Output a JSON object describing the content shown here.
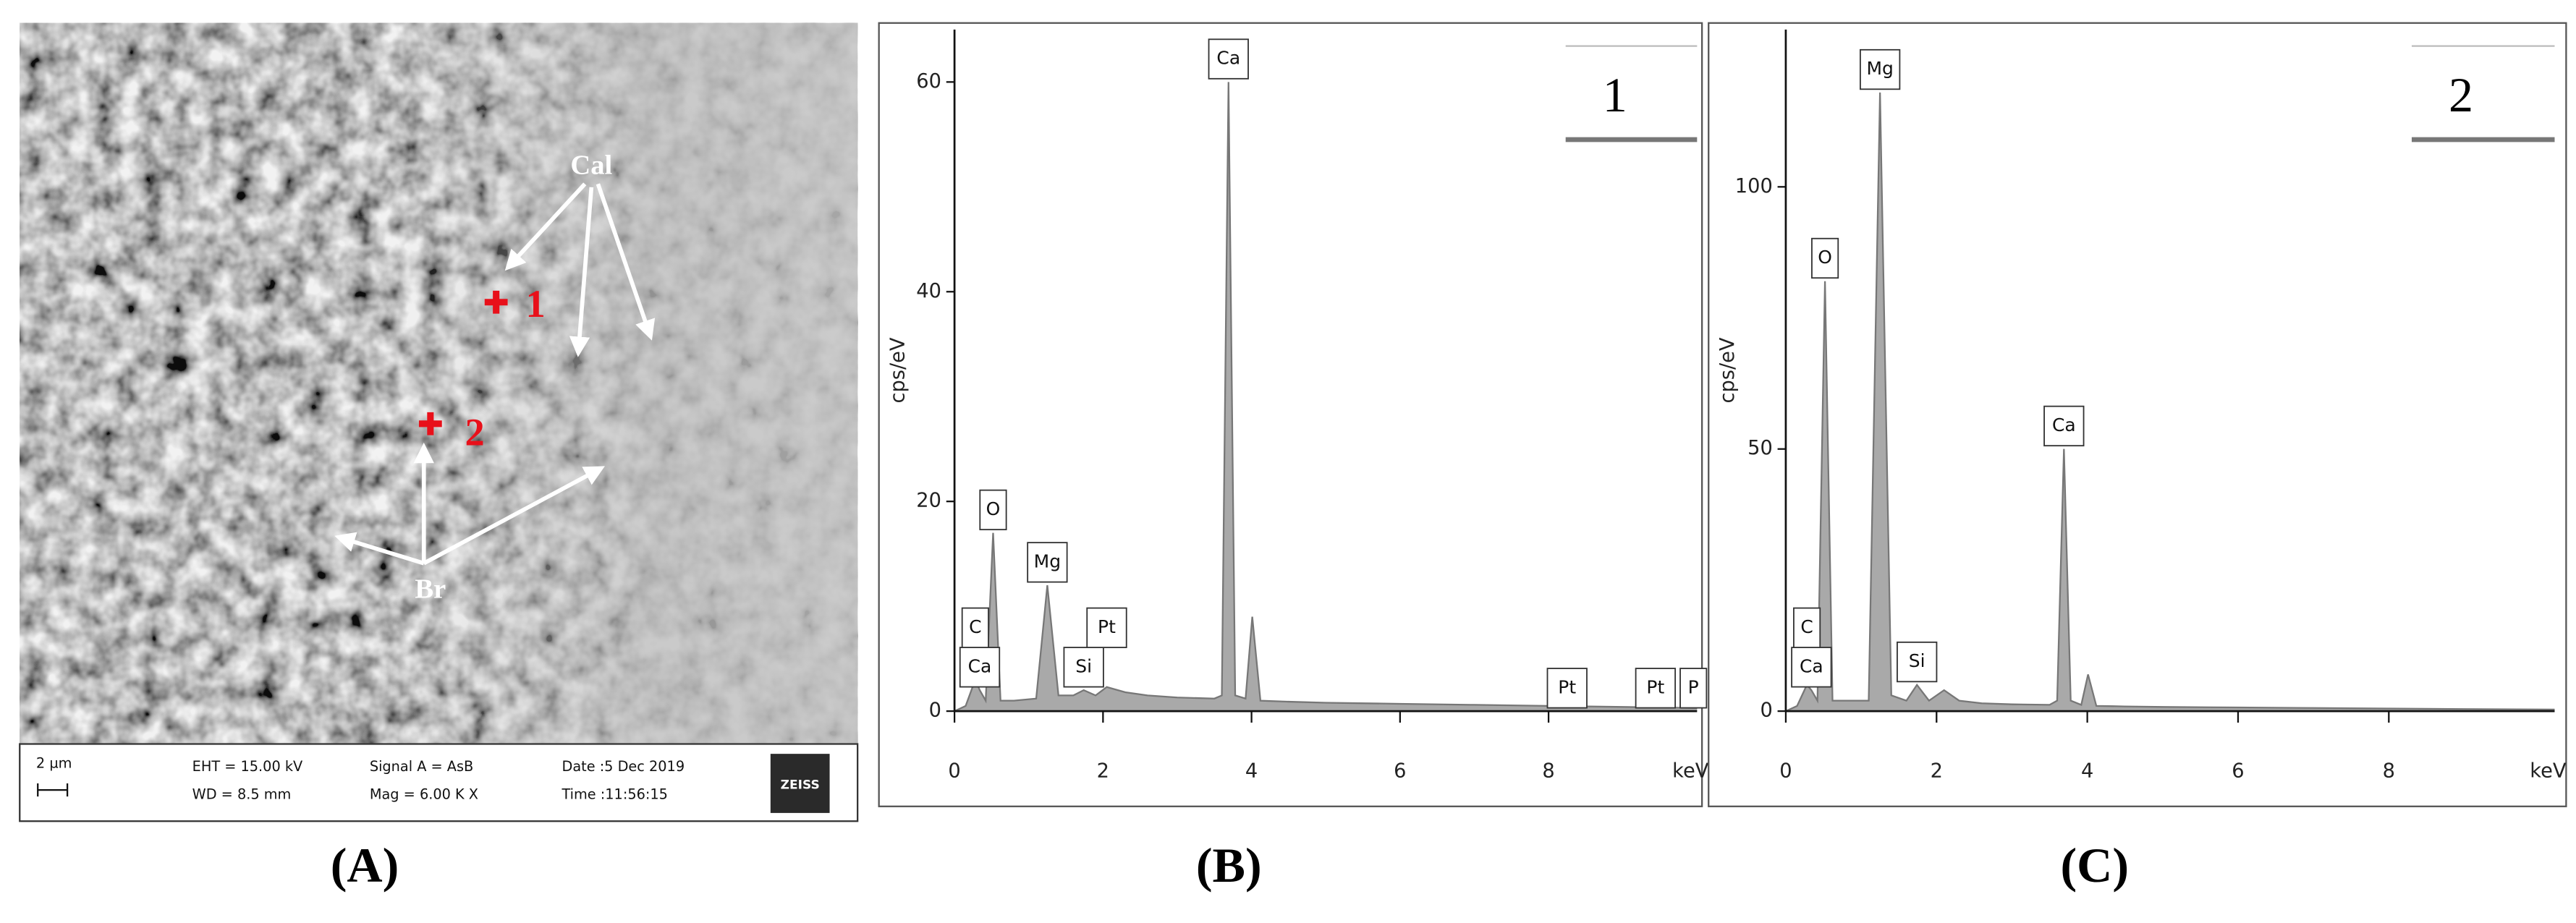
{
  "sem": {
    "annotations": {
      "cal": "Cal",
      "br": "Br",
      "point1": "1",
      "point2": "2"
    },
    "info": {
      "scale": "2 µm",
      "eht": "EHT = 15.00 kV",
      "wd": "WD = 8.5 mm",
      "signal": "Signal A = AsB",
      "mag": "Mag =  6.00 K X",
      "date": "Date :5 Dec 2019",
      "time": "Time :11:56:15",
      "brand": "ZEISS"
    }
  },
  "panel_labels": [
    "(A)",
    "(B)",
    "(C)"
  ],
  "chart_data": [
    {
      "type": "line",
      "inset": "1",
      "y_label": "cps/eV",
      "x_label": "keV",
      "x": [
        0,
        0.15,
        0.28,
        0.34,
        0.42,
        0.52,
        0.62,
        0.8,
        1.1,
        1.25,
        1.4,
        1.6,
        1.74,
        1.9,
        2.05,
        2.3,
        2.6,
        3.0,
        3.5,
        3.6,
        3.69,
        3.78,
        3.92,
        4.01,
        4.12,
        4.5,
        5,
        6,
        7,
        8,
        9,
        10
      ],
      "series": [
        {
          "color": "#a9a9a9",
          "values": [
            0,
            0.5,
            3,
            2,
            1,
            17,
            1,
            1,
            1.2,
            12,
            1.5,
            1.5,
            2,
            1.5,
            2.3,
            1.8,
            1.5,
            1.3,
            1.2,
            1.5,
            60,
            1.5,
            1.2,
            9,
            1,
            0.9,
            0.8,
            0.7,
            0.6,
            0.5,
            0.4,
            0.3
          ]
        }
      ],
      "annotations": [
        {
          "text": "Ca",
          "x": 0.34
        },
        {
          "text": "C",
          "x": 0.28
        },
        {
          "text": "O",
          "x": 0.52
        },
        {
          "text": "Mg",
          "x": 1.25
        },
        {
          "text": "Si",
          "x": 1.74
        },
        {
          "text": "Pt",
          "x": 2.05
        },
        {
          "text": "Ca",
          "x": 3.69
        },
        {
          "text": "Pt",
          "x": 8.25
        },
        {
          "text": "Pt",
          "x": 9.44
        },
        {
          "text": "P",
          "x": 9.95
        }
      ],
      "xlim": [
        0,
        10
      ],
      "xticks": [
        0,
        2,
        4,
        6,
        8
      ],
      "ylim": [
        0,
        65
      ],
      "yticks": [
        0,
        20,
        40,
        60
      ]
    },
    {
      "type": "line",
      "inset": "2",
      "y_label": "cps/eV",
      "x_label": "keV",
      "x": [
        0,
        0.15,
        0.28,
        0.34,
        0.42,
        0.52,
        0.62,
        0.8,
        1.1,
        1.25,
        1.4,
        1.6,
        1.74,
        1.9,
        2.1,
        2.3,
        2.6,
        3.0,
        3.5,
        3.6,
        3.69,
        3.78,
        3.92,
        4.01,
        4.12,
        4.5,
        5,
        6,
        7,
        8,
        9,
        10.2
      ],
      "series": [
        {
          "color": "#a9a9a9",
          "values": [
            0,
            1,
            5,
            4,
            2,
            82,
            2,
            2,
            2,
            118,
            3,
            2,
            5,
            2,
            4,
            2,
            1.5,
            1.3,
            1.2,
            2,
            50,
            2,
            1.2,
            7,
            1,
            0.9,
            0.8,
            0.7,
            0.6,
            0.5,
            0.4,
            0.3
          ]
        }
      ],
      "annotations": [
        {
          "text": "Ca",
          "x": 0.34
        },
        {
          "text": "C",
          "x": 0.28
        },
        {
          "text": "O",
          "x": 0.52
        },
        {
          "text": "Mg",
          "x": 1.25
        },
        {
          "text": "Si",
          "x": 1.74
        },
        {
          "text": "Ca",
          "x": 3.69
        }
      ],
      "xlim": [
        0,
        10.2
      ],
      "xticks": [
        0,
        2,
        4,
        6,
        8
      ],
      "ylim": [
        0,
        130
      ],
      "yticks": [
        0,
        50,
        100
      ]
    }
  ]
}
